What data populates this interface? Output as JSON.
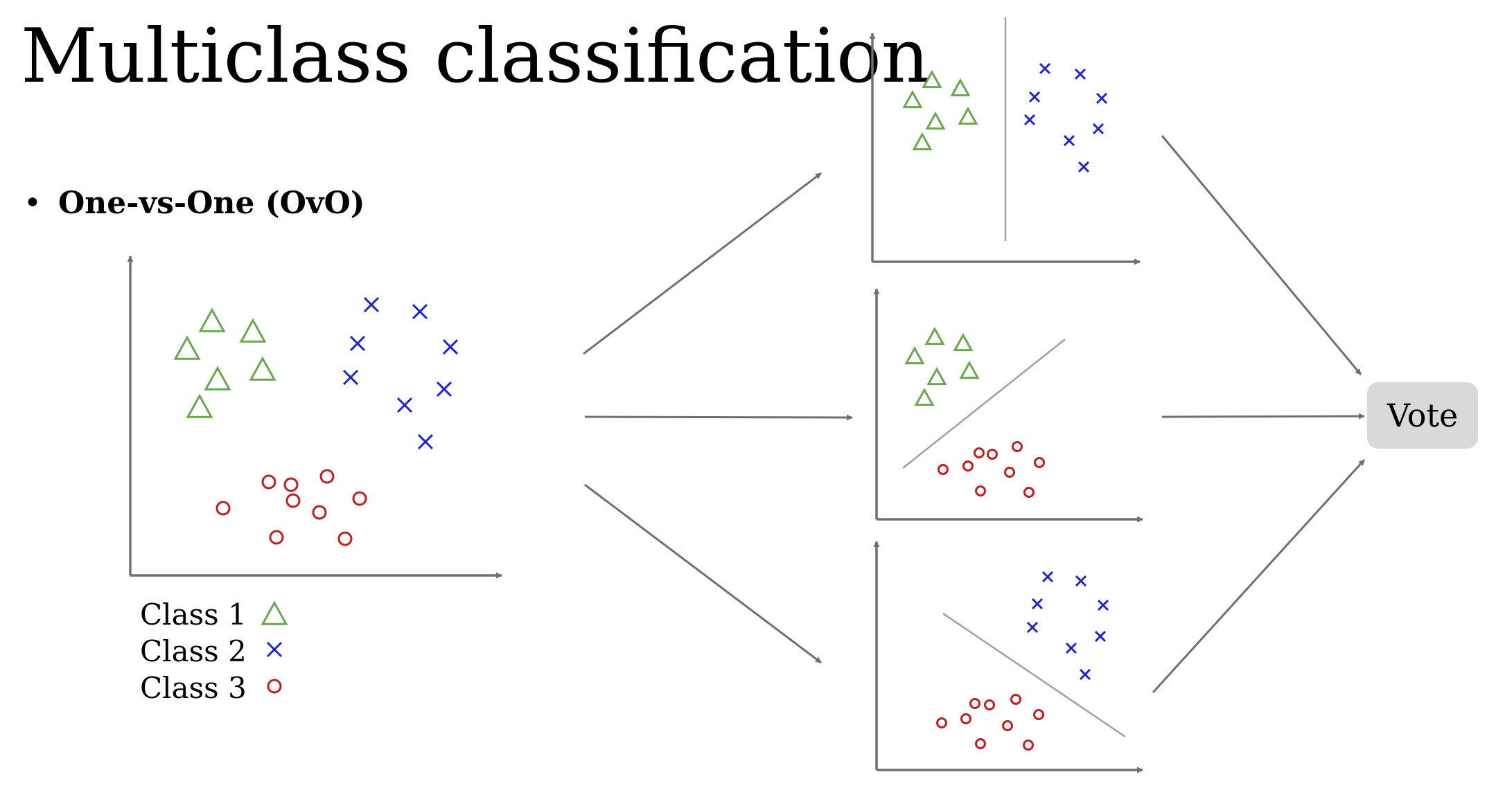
{
  "title": "Multiclass classification",
  "bullet": {
    "symbol": "•",
    "text": "One-vs-One (OvO)"
  },
  "legend": [
    {
      "label": "Class 1",
      "marker": "triangle",
      "color": "#6aa84f"
    },
    {
      "label": "Class 2",
      "marker": "cross",
      "color": "#1c23c8"
    },
    {
      "label": "Class 3",
      "marker": "circle",
      "color": "#c01f1f"
    }
  ],
  "panels": [
    {
      "id": "full-data",
      "classes": [
        "Class 1",
        "Class 2",
        "Class 3"
      ]
    },
    {
      "id": "class1-vs-class2",
      "classes": [
        "Class 1",
        "Class 2"
      ]
    },
    {
      "id": "class1-vs-class3",
      "classes": [
        "Class 1",
        "Class 3"
      ]
    },
    {
      "id": "class2-vs-class3",
      "classes": [
        "Class 2",
        "Class 3"
      ]
    }
  ],
  "vote": {
    "label": "Vote",
    "fill": "#d9d9d9"
  },
  "colors": {
    "class1": "#6aa84f",
    "class2": "#1c23c8",
    "class3": "#c01f1f",
    "axis": "#707070",
    "boundary": "#a0a0a0",
    "arrow": "#707070"
  }
}
